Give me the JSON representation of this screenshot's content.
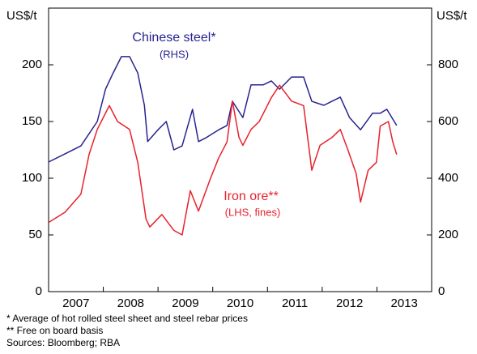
{
  "chart_data": {
    "type": "line",
    "y_unit_left": "US$/t",
    "y_unit_right": "US$/t",
    "xlim": [
      2007,
      2014
    ],
    "xticks": [
      2008,
      2009,
      2010,
      2011,
      2012,
      2013
    ],
    "categories": [
      "2007",
      "2008",
      "2009",
      "2010",
      "2011",
      "2012",
      "2013"
    ],
    "ylim": [
      0,
      250
    ],
    "yticks": [
      0,
      50,
      100,
      150,
      200
    ],
    "y2lim": [
      0,
      1000
    ],
    "y2ticks": [
      0,
      200,
      400,
      600,
      800
    ],
    "series": [
      {
        "name": "Chinese steel*",
        "note": "(RHS)",
        "color": "#27238f",
        "axis": "y2",
        "x": [
          2007.0,
          2007.3,
          2007.59,
          2007.89,
          2008.04,
          2008.18,
          2008.33,
          2008.48,
          2008.63,
          2008.75,
          2008.81,
          2009.0,
          2009.15,
          2009.29,
          2009.44,
          2009.63,
          2009.74,
          2009.88,
          2010.11,
          2010.26,
          2010.36,
          2010.55,
          2010.7,
          2010.92,
          2011.07,
          2011.22,
          2011.44,
          2011.66,
          2011.81,
          2012.03,
          2012.33,
          2012.5,
          2012.7,
          2012.92,
          2013.06,
          2013.18,
          2013.36
        ],
        "values": [
          457,
          486,
          514,
          600,
          714,
          771,
          829,
          829,
          771,
          657,
          529,
          571,
          600,
          500,
          514,
          643,
          529,
          543,
          571,
          586,
          671,
          614,
          729,
          729,
          743,
          714,
          757,
          757,
          671,
          657,
          686,
          614,
          571,
          629,
          629,
          643,
          586
        ]
      },
      {
        "name": "Iron ore**",
        "note": "(LHS, fines)",
        "color": "#e8212b",
        "axis": "y",
        "x": [
          2007.0,
          2007.3,
          2007.59,
          2007.74,
          2007.89,
          2008.11,
          2008.26,
          2008.48,
          2008.63,
          2008.78,
          2008.85,
          2009.07,
          2009.29,
          2009.44,
          2009.59,
          2009.74,
          2009.96,
          2010.11,
          2010.26,
          2010.36,
          2010.48,
          2010.55,
          2010.7,
          2010.85,
          2011.07,
          2011.22,
          2011.44,
          2011.66,
          2011.81,
          2011.96,
          2012.18,
          2012.33,
          2012.47,
          2012.62,
          2012.7,
          2012.84,
          2012.99,
          2013.06,
          2013.21,
          2013.29,
          2013.36
        ],
        "values": [
          61,
          70,
          86,
          121,
          143,
          164,
          150,
          143,
          114,
          64,
          57,
          68,
          54,
          50,
          89,
          71,
          100,
          118,
          132,
          168,
          136,
          129,
          143,
          150,
          171,
          182,
          168,
          164,
          107,
          129,
          136,
          143,
          125,
          104,
          79,
          107,
          114,
          146,
          150,
          132,
          121
        ]
      }
    ],
    "footnotes": [
      "*     Average of hot rolled steel sheet and steel rebar prices",
      "**    Free on board basis",
      "Sources: Bloomberg; RBA"
    ]
  }
}
